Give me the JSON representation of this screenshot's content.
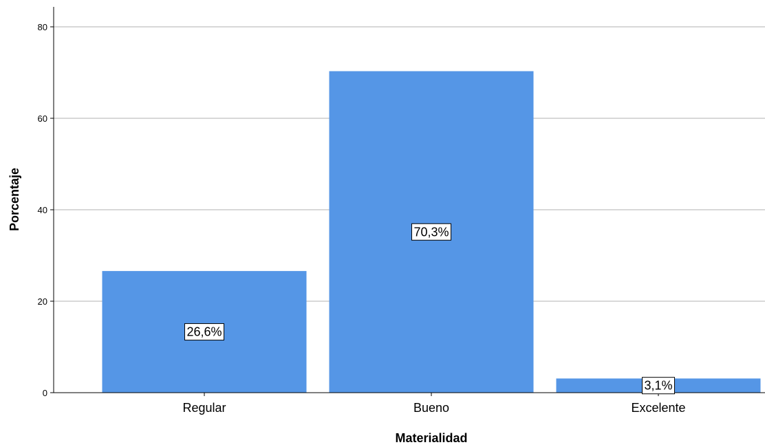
{
  "chart_data": {
    "type": "bar",
    "categories": [
      "Regular",
      "Bueno",
      "Excelente"
    ],
    "values": [
      26.6,
      70.3,
      3.1
    ],
    "data_labels": [
      "26,6%",
      "70,3%",
      "3,1%"
    ],
    "xlabel": "Materialidad",
    "ylabel": "Porcentaje",
    "ylim": [
      0,
      84
    ],
    "yticks": [
      0,
      20,
      40,
      60,
      80
    ],
    "grid": true,
    "bar_color": "#5596e6",
    "grid_color": "#cccccc"
  }
}
